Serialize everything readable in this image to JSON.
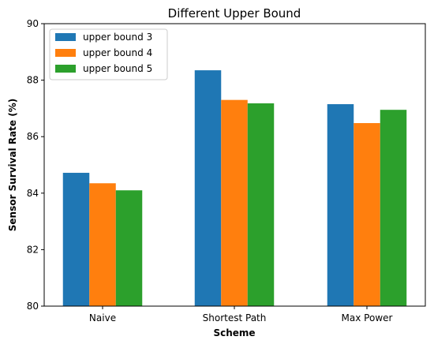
{
  "chart_data": {
    "type": "bar",
    "title": "Different Upper Bound",
    "xlabel": "Scheme",
    "ylabel": "Sensor Survival Rate (%)",
    "categories": [
      "Naive",
      "Shortest Path",
      "Max Power"
    ],
    "series": [
      {
        "name": "upper bound 3",
        "color": "#1f77b4",
        "values": [
          84.72,
          88.35,
          87.15
        ]
      },
      {
        "name": "upper bound 4",
        "color": "#ff7f0e",
        "values": [
          84.35,
          87.3,
          86.48
        ]
      },
      {
        "name": "upper bound 5",
        "color": "#2ca02c",
        "values": [
          84.1,
          87.18,
          86.95
        ]
      }
    ],
    "ylim": [
      80,
      90
    ],
    "yticks": [
      "80",
      "82",
      "84",
      "86",
      "88",
      "90"
    ],
    "grid": false,
    "legend_position": "upper left"
  }
}
